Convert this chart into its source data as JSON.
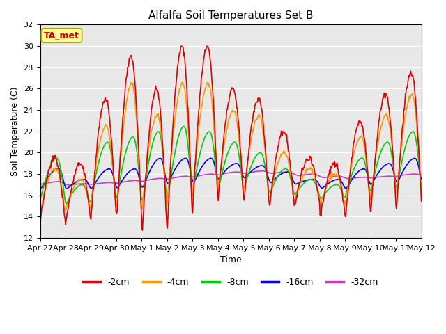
{
  "title": "Alfalfa Soil Temperatures Set B",
  "xlabel": "Time",
  "ylabel": "Soil Temperature (C)",
  "ylim": [
    12,
    32
  ],
  "yticks": [
    12,
    14,
    16,
    18,
    20,
    22,
    24,
    26,
    28,
    30,
    32
  ],
  "bg_color": "#e8e8e8",
  "plot_area_color": "#e8e8e8",
  "annotation_text": "TA_met",
  "annotation_color": "#cc0000",
  "annotation_bg": "#ffff99",
  "annotation_border": "#aaaa00",
  "series_colors": {
    "-2cm": "#dd0000",
    "-4cm": "#ff9900",
    "-8cm": "#00cc00",
    "-16cm": "#0000ee",
    "-32cm": "#bb44bb"
  },
  "series_lw": 1.2,
  "x_ticklabels": [
    "Apr 27",
    "Apr 28",
    "Apr 29",
    "Apr 30",
    "May 1",
    "May 2",
    "May 3",
    "May 4",
    "May 5",
    "May 6",
    "May 7",
    "May 8",
    "May 9",
    "May 10",
    "May 11",
    "May 12"
  ],
  "figsize": [
    6.4,
    4.8
  ],
  "dpi": 100,
  "title_fontsize": 11,
  "tick_fontsize": 8,
  "axis_fontsize": 9
}
